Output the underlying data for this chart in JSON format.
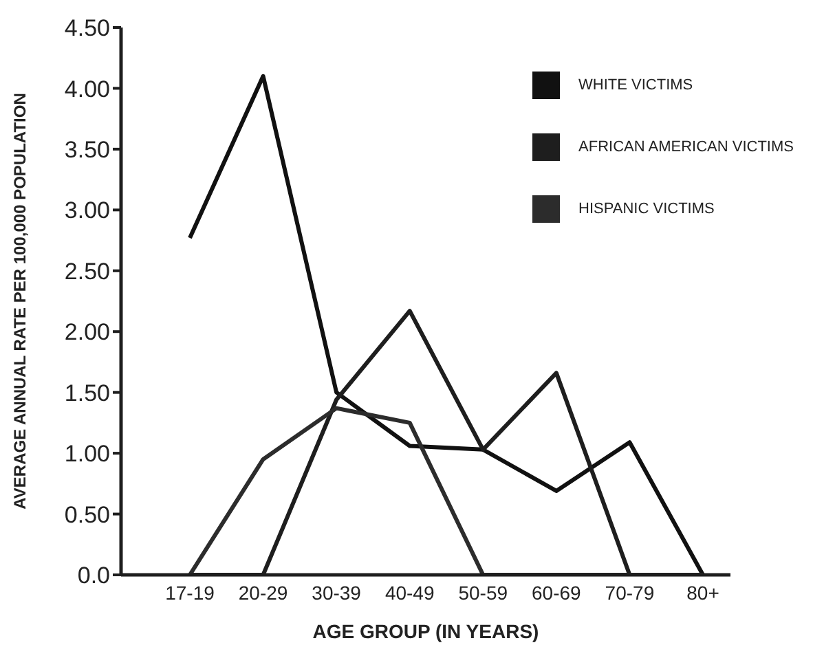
{
  "chart_data": {
    "type": "line",
    "xlabel": "AGE GROUP (IN YEARS)",
    "ylabel": "AVERAGE ANNUAL RATE PER 100,000 POPULATION",
    "categories": [
      "17-19",
      "20-29",
      "30-39",
      "40-49",
      "50-59",
      "60-69",
      "70-79",
      "80+"
    ],
    "series": [
      {
        "name": "WHITE VICTIMS",
        "color": "#111111",
        "values": [
          2.77,
          4.1,
          1.5,
          1.06,
          1.03,
          0.69,
          1.09,
          0
        ]
      },
      {
        "name": "AFRICAN AMERICAN VICTIMS",
        "color": "#1e1e1e",
        "values": [
          0,
          0,
          1.44,
          2.17,
          1.03,
          1.66,
          0,
          0
        ]
      },
      {
        "name": "HISPANIC VICTIMS",
        "color": "#2c2c2c",
        "values": [
          0,
          0.95,
          1.37,
          1.25,
          0,
          0,
          0,
          0
        ]
      }
    ],
    "ylim": [
      0,
      4.5
    ],
    "yticks": [
      {
        "value": 0,
        "label": "0.0"
      },
      {
        "value": 0.5,
        "label": "0.50"
      },
      {
        "value": 1,
        "label": "1.00"
      },
      {
        "value": 1.5,
        "label": "1.50"
      },
      {
        "value": 2,
        "label": "2.00"
      },
      {
        "value": 2.5,
        "label": "2.50"
      },
      {
        "value": 3,
        "label": "3.00"
      },
      {
        "value": 3.5,
        "label": "3.50"
      },
      {
        "value": 4,
        "label": "4.00"
      },
      {
        "value": 4.5,
        "label": "4.50"
      }
    ],
    "legend": "top right",
    "line_style": "solid"
  }
}
